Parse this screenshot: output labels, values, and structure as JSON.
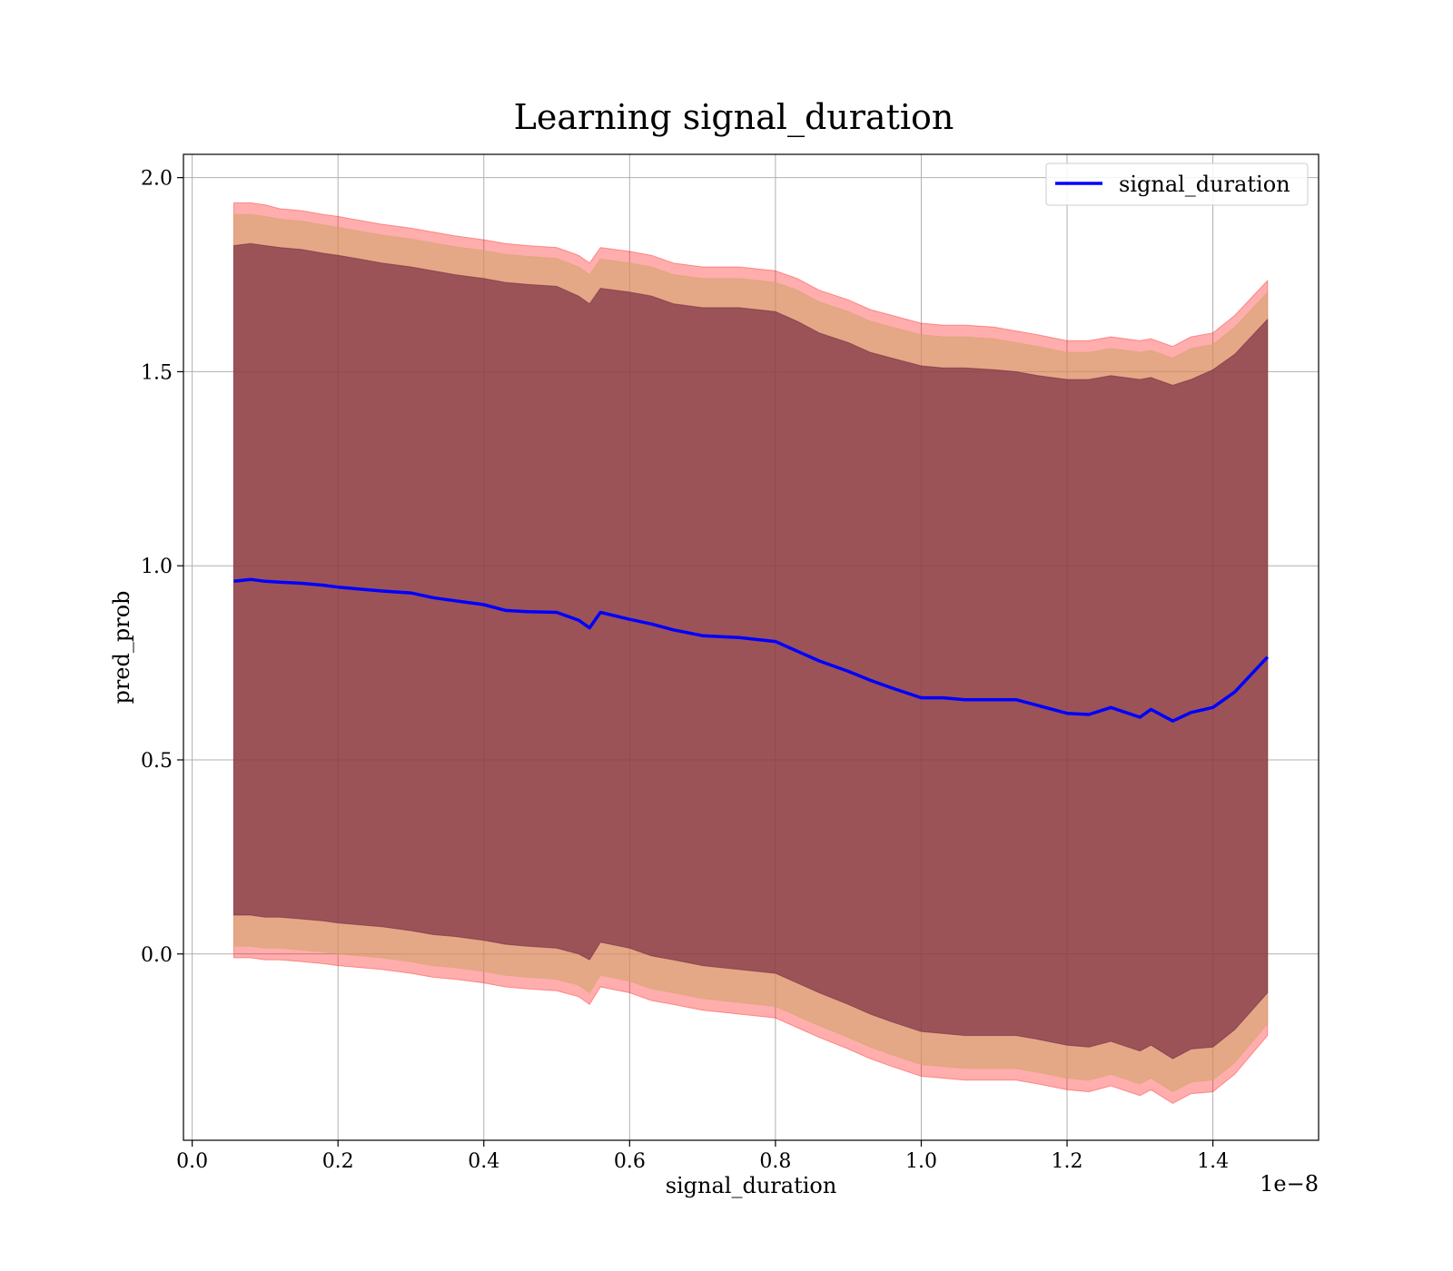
{
  "chart_data": {
    "type": "line",
    "title": "Learning signal_duration",
    "xlabel": "signal_duration",
    "ylabel": "pred_prob",
    "x_offset_text": "1e−8",
    "xlim": [
      -0.012,
      1.545
    ],
    "ylim": [
      -0.48,
      2.06
    ],
    "x_ticks": [
      0.0,
      0.2,
      0.4,
      0.6,
      0.8,
      1.0,
      1.2,
      1.4
    ],
    "x_tick_labels": [
      "0.0",
      "0.2",
      "0.4",
      "0.6",
      "0.8",
      "1.0",
      "1.2",
      "1.4"
    ],
    "y_ticks": [
      0.0,
      0.5,
      1.0,
      1.5,
      2.0
    ],
    "y_tick_labels": [
      "0.0",
      "0.5",
      "1.0",
      "1.5",
      "2.0"
    ],
    "grid": true,
    "legend_position": "top-right",
    "colors": {
      "line": "#0000ff",
      "band_outer": "#ff0000",
      "band_middle": "#d2a56e",
      "band_inner": "#6e1e3c"
    },
    "series": [
      {
        "name": "signal_duration",
        "x": [
          0.057,
          0.08,
          0.1,
          0.12,
          0.15,
          0.18,
          0.2,
          0.23,
          0.26,
          0.3,
          0.33,
          0.36,
          0.4,
          0.43,
          0.46,
          0.5,
          0.53,
          0.545,
          0.56,
          0.6,
          0.63,
          0.66,
          0.7,
          0.75,
          0.8,
          0.83,
          0.86,
          0.9,
          0.93,
          0.96,
          1.0,
          1.03,
          1.06,
          1.1,
          1.13,
          1.16,
          1.2,
          1.23,
          1.26,
          1.3,
          1.315,
          1.345,
          1.37,
          1.4,
          1.43,
          1.475
        ],
        "y": [
          0.96,
          0.965,
          0.96,
          0.958,
          0.955,
          0.95,
          0.945,
          0.94,
          0.935,
          0.93,
          0.918,
          0.91,
          0.9,
          0.885,
          0.882,
          0.88,
          0.86,
          0.84,
          0.88,
          0.862,
          0.85,
          0.835,
          0.82,
          0.815,
          0.805,
          0.78,
          0.755,
          0.728,
          0.705,
          0.685,
          0.66,
          0.66,
          0.655,
          0.655,
          0.655,
          0.64,
          0.62,
          0.617,
          0.635,
          0.61,
          0.63,
          0.6,
          0.622,
          0.635,
          0.675,
          0.765
        ],
        "band_outer_upper": [
          1.935,
          1.935,
          1.93,
          1.92,
          1.915,
          1.905,
          1.9,
          1.89,
          1.88,
          1.87,
          1.86,
          1.85,
          1.84,
          1.83,
          1.825,
          1.82,
          1.8,
          1.78,
          1.82,
          1.81,
          1.8,
          1.78,
          1.77,
          1.77,
          1.76,
          1.74,
          1.71,
          1.685,
          1.66,
          1.645,
          1.625,
          1.62,
          1.62,
          1.615,
          1.605,
          1.595,
          1.58,
          1.58,
          1.59,
          1.58,
          1.585,
          1.565,
          1.59,
          1.6,
          1.645,
          1.735
        ],
        "band_middle_upper": [
          1.905,
          1.905,
          1.9,
          1.893,
          1.888,
          1.878,
          1.872,
          1.862,
          1.852,
          1.842,
          1.832,
          1.822,
          1.812,
          1.802,
          1.797,
          1.792,
          1.77,
          1.75,
          1.79,
          1.78,
          1.77,
          1.75,
          1.74,
          1.74,
          1.73,
          1.71,
          1.68,
          1.655,
          1.63,
          1.615,
          1.595,
          1.59,
          1.59,
          1.585,
          1.575,
          1.565,
          1.55,
          1.55,
          1.56,
          1.55,
          1.555,
          1.535,
          1.56,
          1.57,
          1.615,
          1.705
        ],
        "band_inner_upper": [
          1.825,
          1.83,
          1.825,
          1.82,
          1.815,
          1.805,
          1.8,
          1.79,
          1.78,
          1.77,
          1.76,
          1.75,
          1.74,
          1.73,
          1.725,
          1.72,
          1.695,
          1.675,
          1.715,
          1.705,
          1.695,
          1.675,
          1.665,
          1.665,
          1.655,
          1.63,
          1.6,
          1.575,
          1.55,
          1.535,
          1.515,
          1.51,
          1.51,
          1.505,
          1.5,
          1.49,
          1.48,
          1.48,
          1.49,
          1.48,
          1.485,
          1.465,
          1.48,
          1.505,
          1.545,
          1.635
        ],
        "band_inner_lower": [
          0.1,
          0.1,
          0.095,
          0.095,
          0.09,
          0.085,
          0.08,
          0.075,
          0.07,
          0.06,
          0.05,
          0.045,
          0.035,
          0.025,
          0.02,
          0.015,
          0.0,
          -0.015,
          0.03,
          0.015,
          -0.005,
          -0.015,
          -0.03,
          -0.04,
          -0.05,
          -0.075,
          -0.1,
          -0.13,
          -0.155,
          -0.175,
          -0.2,
          -0.205,
          -0.21,
          -0.21,
          -0.21,
          -0.22,
          -0.235,
          -0.24,
          -0.225,
          -0.25,
          -0.235,
          -0.27,
          -0.245,
          -0.24,
          -0.195,
          -0.1
        ],
        "band_middle_lower": [
          0.02,
          0.02,
          0.015,
          0.015,
          0.01,
          0.005,
          0.0,
          -0.005,
          -0.01,
          -0.02,
          -0.03,
          -0.035,
          -0.045,
          -0.055,
          -0.06,
          -0.065,
          -0.08,
          -0.1,
          -0.055,
          -0.07,
          -0.09,
          -0.1,
          -0.115,
          -0.125,
          -0.135,
          -0.16,
          -0.185,
          -0.215,
          -0.24,
          -0.26,
          -0.285,
          -0.29,
          -0.295,
          -0.295,
          -0.295,
          -0.305,
          -0.32,
          -0.325,
          -0.31,
          -0.335,
          -0.32,
          -0.355,
          -0.33,
          -0.325,
          -0.28,
          -0.18
        ],
        "band_outer_lower": [
          -0.01,
          -0.01,
          -0.015,
          -0.015,
          -0.02,
          -0.025,
          -0.03,
          -0.035,
          -0.04,
          -0.05,
          -0.06,
          -0.065,
          -0.075,
          -0.085,
          -0.09,
          -0.095,
          -0.11,
          -0.13,
          -0.085,
          -0.1,
          -0.12,
          -0.13,
          -0.145,
          -0.155,
          -0.165,
          -0.19,
          -0.215,
          -0.245,
          -0.27,
          -0.29,
          -0.315,
          -0.32,
          -0.325,
          -0.325,
          -0.325,
          -0.335,
          -0.35,
          -0.355,
          -0.34,
          -0.365,
          -0.35,
          -0.385,
          -0.36,
          -0.355,
          -0.31,
          -0.21
        ]
      }
    ]
  }
}
